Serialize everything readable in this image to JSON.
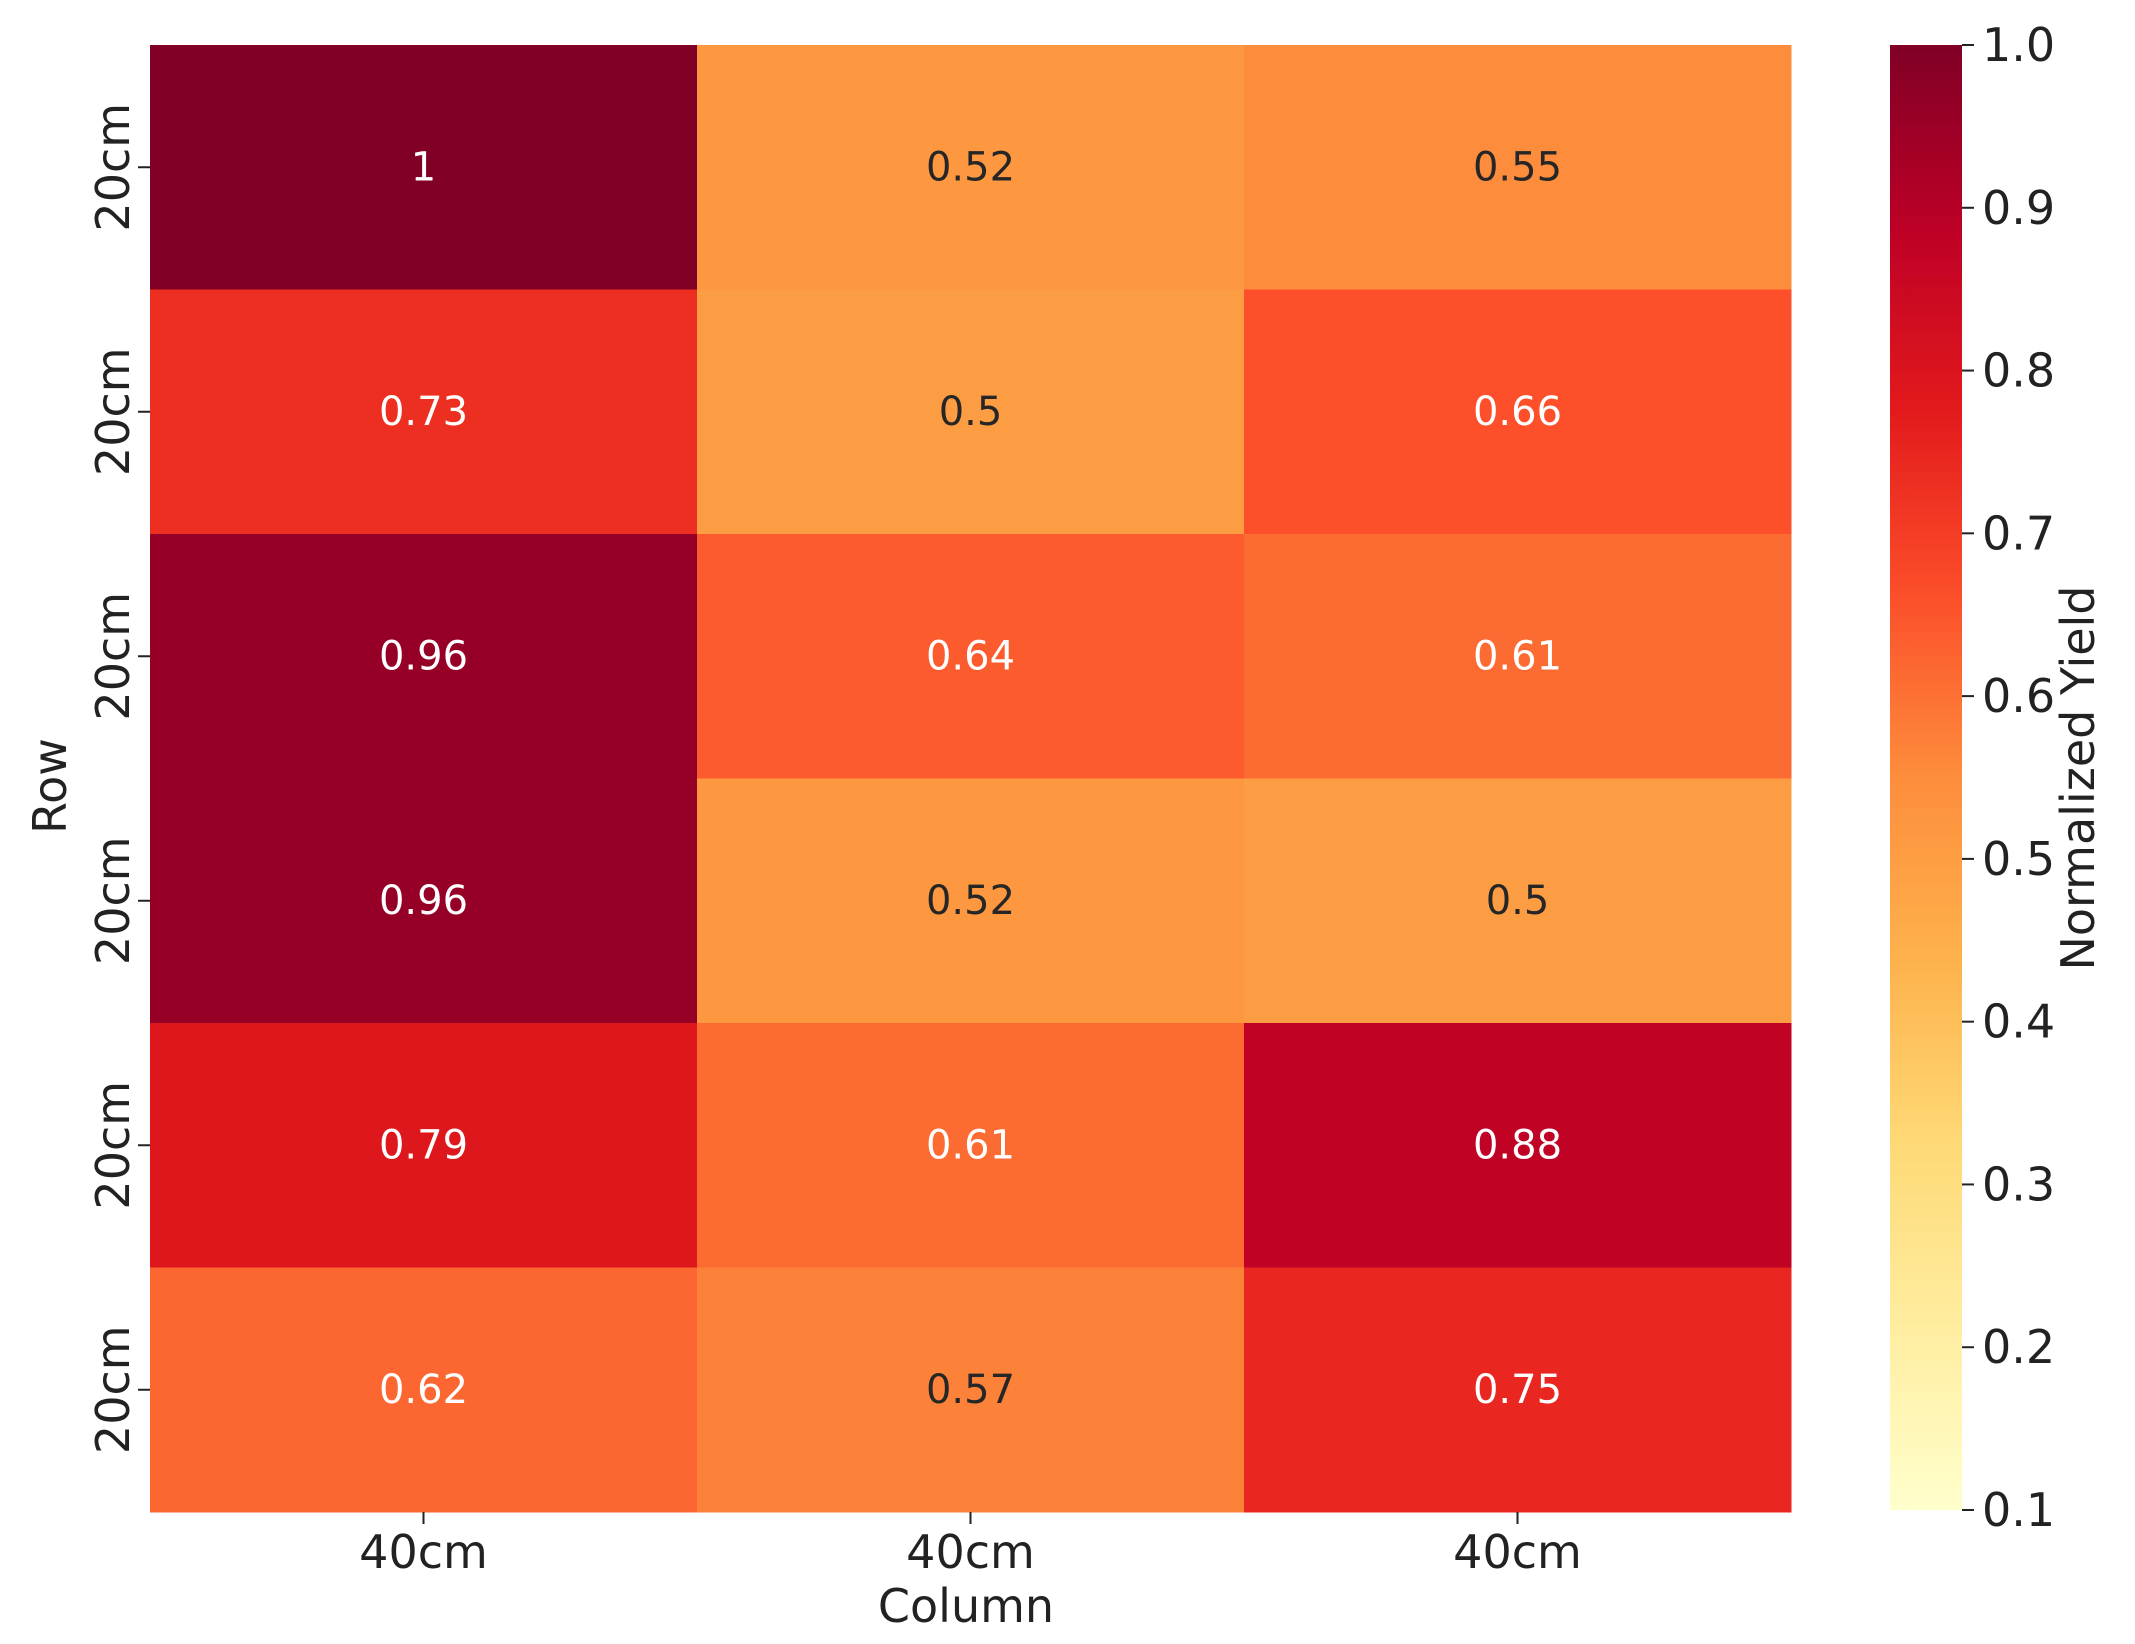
{
  "chart_data": {
    "type": "heatmap",
    "title": "",
    "xlabel": "Column",
    "ylabel": "Row",
    "x_categories": [
      "40cm",
      "40cm",
      "40cm"
    ],
    "y_categories": [
      "20cm",
      "20cm",
      "20cm",
      "20cm",
      "20cm",
      "20cm"
    ],
    "values": [
      [
        1,
        0.52,
        0.55
      ],
      [
        0.73,
        0.5,
        0.66
      ],
      [
        0.96,
        0.64,
        0.61
      ],
      [
        0.96,
        0.52,
        0.5
      ],
      [
        0.79,
        0.61,
        0.88
      ],
      [
        0.62,
        0.57,
        0.75
      ]
    ],
    "value_labels": [
      [
        "1",
        "0.52",
        "0.55"
      ],
      [
        "0.73",
        "0.5",
        "0.66"
      ],
      [
        "0.96",
        "0.64",
        "0.61"
      ],
      [
        "0.96",
        "0.52",
        "0.5"
      ],
      [
        "0.79",
        "0.61",
        "0.88"
      ],
      [
        "0.62",
        "0.57",
        "0.75"
      ]
    ],
    "colorbar": {
      "label": "Normalized Yield",
      "range": [
        0.1,
        1.0
      ],
      "ticks": [
        0.1,
        0.2,
        0.3,
        0.4,
        0.5,
        0.6,
        0.7,
        0.8,
        0.9,
        1.0
      ],
      "tick_labels": [
        "0.1",
        "0.2",
        "0.3",
        "0.4",
        "0.5",
        "0.6",
        "0.7",
        "0.8",
        "0.9",
        "1.0"
      ]
    },
    "colormap": "YlOrRd",
    "colormap_stops": [
      "#ffffcc",
      "#ffeda0",
      "#fed976",
      "#feb24c",
      "#fd8d3c",
      "#fc4e2a",
      "#e31a1c",
      "#bd0026",
      "#800026"
    ],
    "label_color_dark": "#262626",
    "label_color_light": "#ffffff"
  }
}
